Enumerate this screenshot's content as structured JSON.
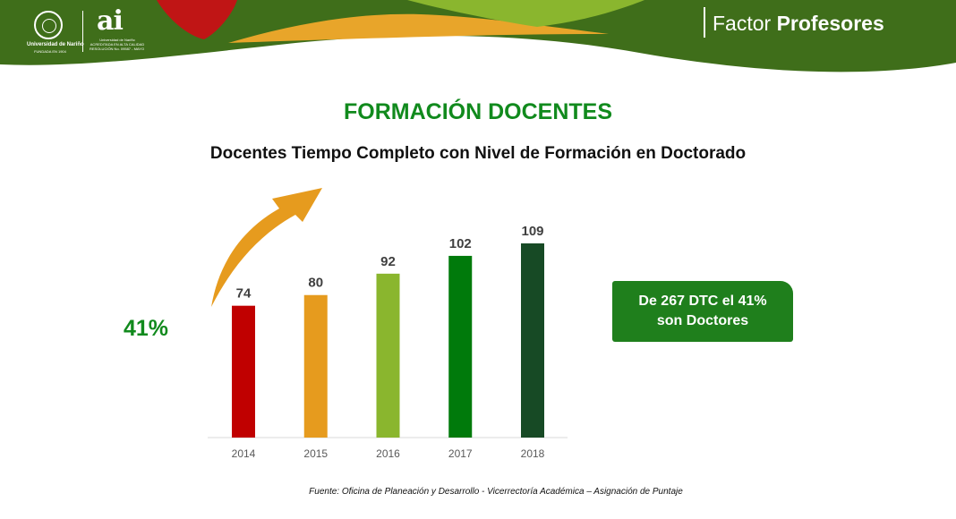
{
  "header": {
    "university_name": "Universidad de Nariño",
    "university_sub": "FUNDADA EN 1904",
    "ai_mark": "ai",
    "ai_line1": "Universidad de Nariño",
    "ai_line2": "ACREDITADA EN ALTA CALIDAD",
    "ai_line3": "RESOLUCIÓN No. 09587 - MAYO 23 DE 2017",
    "factor_light": "Factor ",
    "factor_bold": "Profesores"
  },
  "colors": {
    "accent_green": "#118a1d",
    "band_red": "#c01515",
    "band_orange": "#e8a52a",
    "band_lightgreen": "#8ab62e",
    "band_darkgreen": "#3f6e1a",
    "callout_green": "#1f7f1c"
  },
  "main_title": "FORMACIÓN DOCENTES",
  "subtitle": "Docentes Tiempo Completo con Nivel de Formación en Doctorado",
  "growth_label": "41%",
  "growth_arrow_icon": "curved-arrow-up-icon",
  "callout": {
    "line1": "De 267 DTC el 41%",
    "line2": "son Doctores"
  },
  "chart_data": {
    "type": "bar",
    "categories": [
      "2014",
      "2015",
      "2016",
      "2017",
      "2018"
    ],
    "values": [
      74,
      80,
      92,
      102,
      109
    ],
    "bar_colors": [
      "#c00000",
      "#e69b1e",
      "#8ab62e",
      "#007a0b",
      "#174a25"
    ],
    "ylim": [
      0,
      109
    ],
    "grid": false,
    "data_labels": true
  },
  "source": "Fuente: Oficina de Planeación y Desarrollo - Vicerrectoría Académica – Asignación de Puntaje"
}
